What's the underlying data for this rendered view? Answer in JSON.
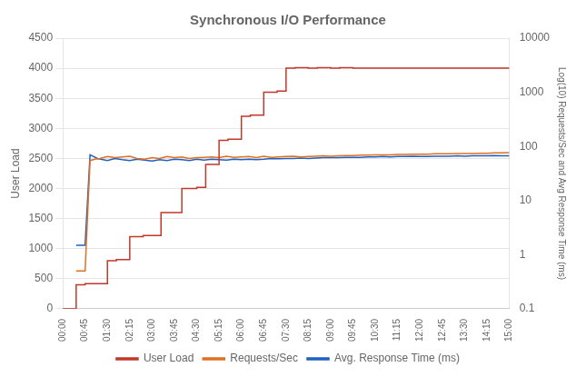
{
  "chart_data": {
    "type": "line",
    "title": "Synchronous I/O Performance",
    "ylabel": "User Load",
    "y2label": "Log(10) Requests/Sec and Avg Response Time (ms)",
    "xlim": [
      0,
      900
    ],
    "xticks": [
      {
        "value": 0,
        "label": "00:00"
      },
      {
        "value": 45,
        "label": "00:45"
      },
      {
        "value": 90,
        "label": "01:30"
      },
      {
        "value": 135,
        "label": "02:15"
      },
      {
        "value": 180,
        "label": "03:00"
      },
      {
        "value": 225,
        "label": "03:45"
      },
      {
        "value": 270,
        "label": "04:30"
      },
      {
        "value": 315,
        "label": "05:15"
      },
      {
        "value": 360,
        "label": "06:00"
      },
      {
        "value": 405,
        "label": "06:45"
      },
      {
        "value": 450,
        "label": "07:30"
      },
      {
        "value": 495,
        "label": "08:15"
      },
      {
        "value": 540,
        "label": "09:00"
      },
      {
        "value": 585,
        "label": "09:45"
      },
      {
        "value": 630,
        "label": "10:30"
      },
      {
        "value": 675,
        "label": "11:15"
      },
      {
        "value": 720,
        "label": "12:00"
      },
      {
        "value": 765,
        "label": "12:45"
      },
      {
        "value": 810,
        "label": "13:30"
      },
      {
        "value": 855,
        "label": "14:15"
      },
      {
        "value": 900,
        "label": "15:00"
      }
    ],
    "ylim": [
      0,
      4500
    ],
    "yticks": [
      0,
      500,
      1000,
      1500,
      2000,
      2500,
      3000,
      3500,
      4000,
      4500
    ],
    "y2lim": [
      0.1,
      10000
    ],
    "y2ticks": [
      0.1,
      1,
      10,
      100,
      1000,
      10000
    ],
    "log": "y2",
    "grid": true,
    "legend": "bottom",
    "series": [
      {
        "name": "User Load",
        "color": "#c0392b",
        "axis": "y",
        "x": [
          0,
          27,
          27,
          45,
          45,
          90,
          90,
          108,
          108,
          135,
          135,
          162,
          162,
          198,
          198,
          240,
          240,
          270,
          270,
          288,
          288,
          315,
          315,
          333,
          333,
          360,
          360,
          378,
          378,
          405,
          405,
          432,
          432,
          450,
          450,
          468,
          468,
          495,
          495,
          513,
          513,
          540,
          540,
          558,
          558,
          585,
          585,
          900
        ],
        "values": [
          0,
          0,
          400,
          400,
          420,
          420,
          800,
          800,
          820,
          820,
          1200,
          1200,
          1220,
          1220,
          1600,
          1600,
          2000,
          2000,
          2020,
          2020,
          2400,
          2400,
          2800,
          2800,
          2820,
          2820,
          3200,
          3200,
          3220,
          3220,
          3600,
          3600,
          3620,
          3620,
          4000,
          4000,
          4010,
          4010,
          4000,
          4000,
          4010,
          4010,
          4000,
          4000,
          4010,
          4010,
          4000,
          4000
        ]
      },
      {
        "name": "Requests/Sec",
        "color": "#e07020",
        "axis": "y2",
        "x": [
          27,
          45,
          55,
          65,
          75,
          90,
          105,
          120,
          135,
          150,
          165,
          180,
          195,
          210,
          225,
          240,
          255,
          270,
          285,
          300,
          315,
          330,
          345,
          360,
          375,
          390,
          405,
          420,
          435,
          450,
          465,
          480,
          495,
          510,
          525,
          540,
          555,
          570,
          585,
          600,
          615,
          630,
          645,
          660,
          675,
          690,
          705,
          720,
          735,
          750,
          765,
          780,
          795,
          810,
          825,
          840,
          855,
          870,
          885,
          900
        ],
        "values": [
          0.5,
          0.5,
          55,
          58,
          60,
          65,
          62,
          64,
          66,
          60,
          58,
          62,
          60,
          65,
          62,
          64,
          60,
          62,
          63,
          64,
          62,
          66,
          63,
          64,
          65,
          62,
          66,
          63,
          64,
          65,
          66,
          64,
          65,
          66,
          67,
          66,
          67,
          68,
          68,
          69,
          69,
          70,
          70,
          70,
          71,
          71,
          72,
          72,
          72,
          73,
          73,
          73,
          74,
          74,
          74,
          75,
          75,
          76,
          76,
          77
        ]
      },
      {
        "name": "Avg. Response Time (ms)",
        "color": "#2060c0",
        "axis": "y2",
        "x": [
          27,
          45,
          55,
          70,
          90,
          105,
          120,
          135,
          150,
          165,
          180,
          195,
          210,
          225,
          240,
          255,
          270,
          285,
          300,
          315,
          330,
          345,
          360,
          375,
          390,
          405,
          420,
          435,
          450,
          465,
          480,
          495,
          510,
          525,
          540,
          555,
          570,
          585,
          600,
          615,
          630,
          645,
          660,
          675,
          690,
          705,
          720,
          735,
          750,
          765,
          780,
          795,
          810,
          825,
          840,
          855,
          870,
          885,
          900
        ],
        "values": [
          1.5,
          1.5,
          70,
          60,
          55,
          60,
          57,
          55,
          58,
          56,
          54,
          57,
          55,
          58,
          57,
          55,
          58,
          56,
          58,
          57,
          56,
          58,
          57,
          58,
          57,
          58,
          60,
          59,
          60,
          60,
          61,
          60,
          61,
          62,
          62,
          62,
          63,
          63,
          63,
          64,
          64,
          65,
          64,
          65,
          65,
          66,
          65,
          65,
          66,
          66,
          66,
          67,
          66,
          67,
          67,
          67,
          68,
          67,
          67
        ]
      }
    ]
  }
}
